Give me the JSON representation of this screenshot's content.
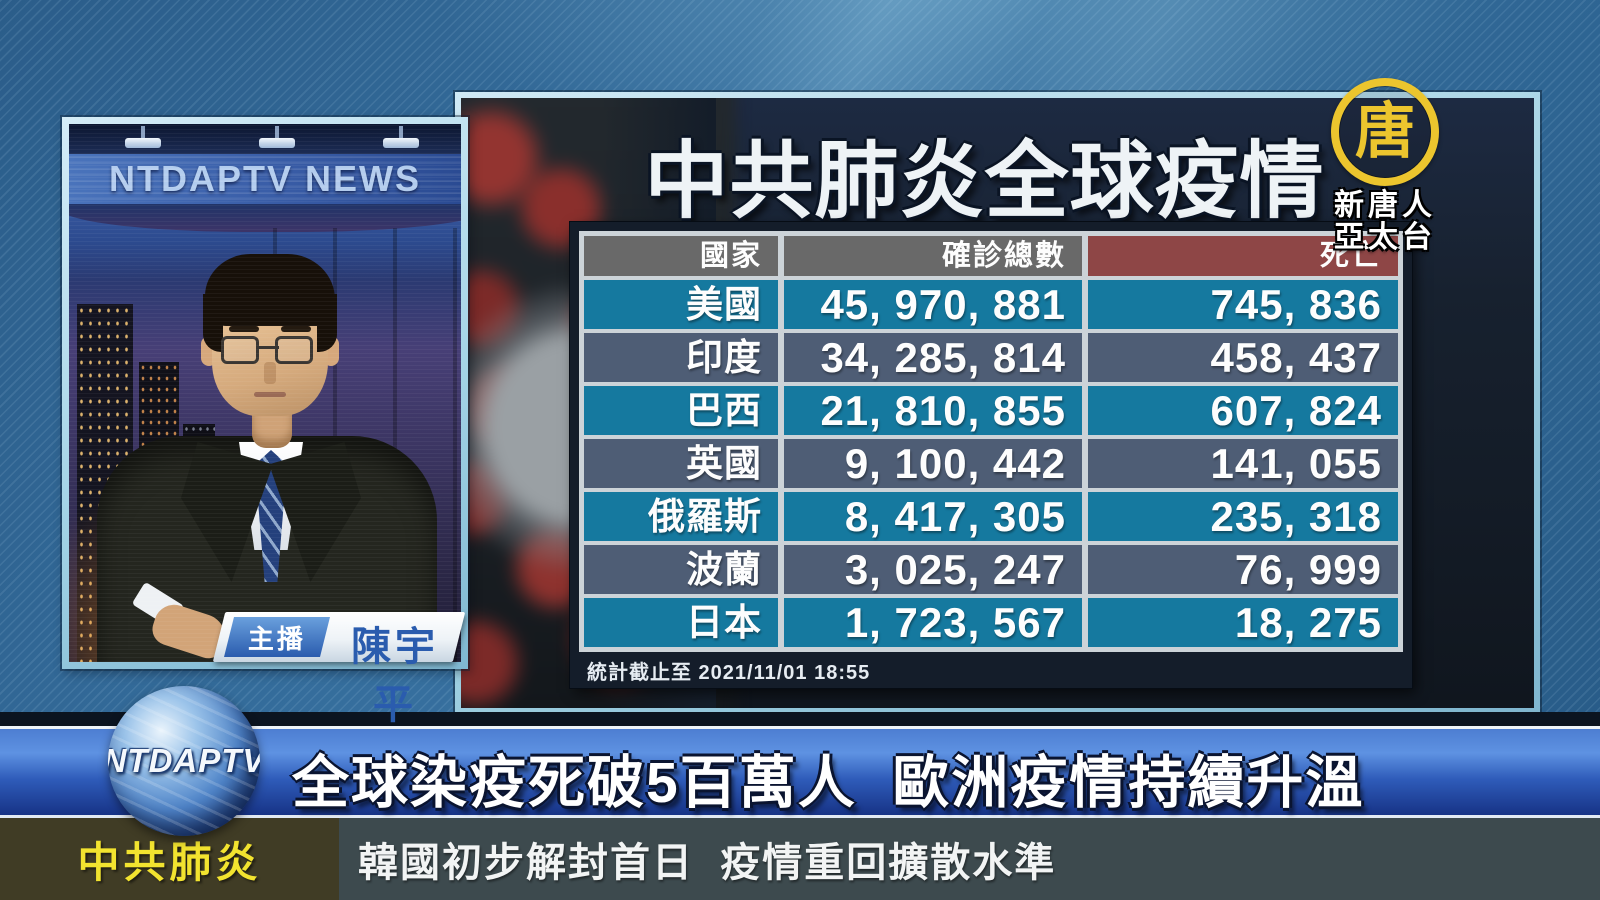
{
  "station": {
    "watermark": "NTDAPTV NEWS",
    "globe_text": "NTDAPTV",
    "logo_character": "唐",
    "logo_name_line1": "新唐人",
    "logo_name_line2": "亞太台"
  },
  "anchor": {
    "role": "主播",
    "name": "陳宇平"
  },
  "infographic": {
    "title": "中共肺炎全球疫情",
    "table": {
      "columns": [
        "國家",
        "確診總數",
        "死亡"
      ],
      "rows": [
        {
          "country": "美國",
          "confirmed": "45, 970, 881",
          "deaths": "745, 836"
        },
        {
          "country": "印度",
          "confirmed": "34, 285, 814",
          "deaths": "458, 437"
        },
        {
          "country": "巴西",
          "confirmed": "21, 810, 855",
          "deaths": "607, 824"
        },
        {
          "country": "英國",
          "confirmed": "9, 100, 442",
          "deaths": "141, 055"
        },
        {
          "country": "俄羅斯",
          "confirmed": "8, 417, 305",
          "deaths": "235, 318"
        },
        {
          "country": "波蘭",
          "confirmed": "3, 025, 247",
          "deaths": "76, 999"
        },
        {
          "country": "日本",
          "confirmed": "1, 723, 567",
          "deaths": "18, 275"
        }
      ]
    },
    "footnote": "統計截止至 2021/11/01 18:55"
  },
  "headline": {
    "text": "全球染疫死破5百萬人  歐洲疫情持續升溫"
  },
  "ticker": {
    "category": "中共肺炎",
    "text": "韓國初步解封首日  疫情重回擴散水準"
  },
  "colors": {
    "accent_gold": "#ecc52e",
    "row_teal": "#15799f",
    "row_slate": "#4e5d75",
    "header_gray": "#696969",
    "header_red": "#8e4646",
    "badge_blue": "#2a5cae",
    "ticker_yellow": "#f2e32f",
    "banner_blue": "#2f5cba"
  },
  "chart_data": {
    "type": "table",
    "title": "中共肺炎全球疫情",
    "columns": [
      "國家",
      "確診總數",
      "死亡"
    ],
    "rows": [
      [
        "美國",
        45970881,
        745836
      ],
      [
        "印度",
        34285814,
        458437
      ],
      [
        "巴西",
        21810855,
        607824
      ],
      [
        "英國",
        9100442,
        141055
      ],
      [
        "俄羅斯",
        8417305,
        235318
      ],
      [
        "波蘭",
        3025247,
        76999
      ],
      [
        "日本",
        1723567,
        18275
      ]
    ],
    "footnote": "統計截止至 2021/11/01 18:55"
  }
}
